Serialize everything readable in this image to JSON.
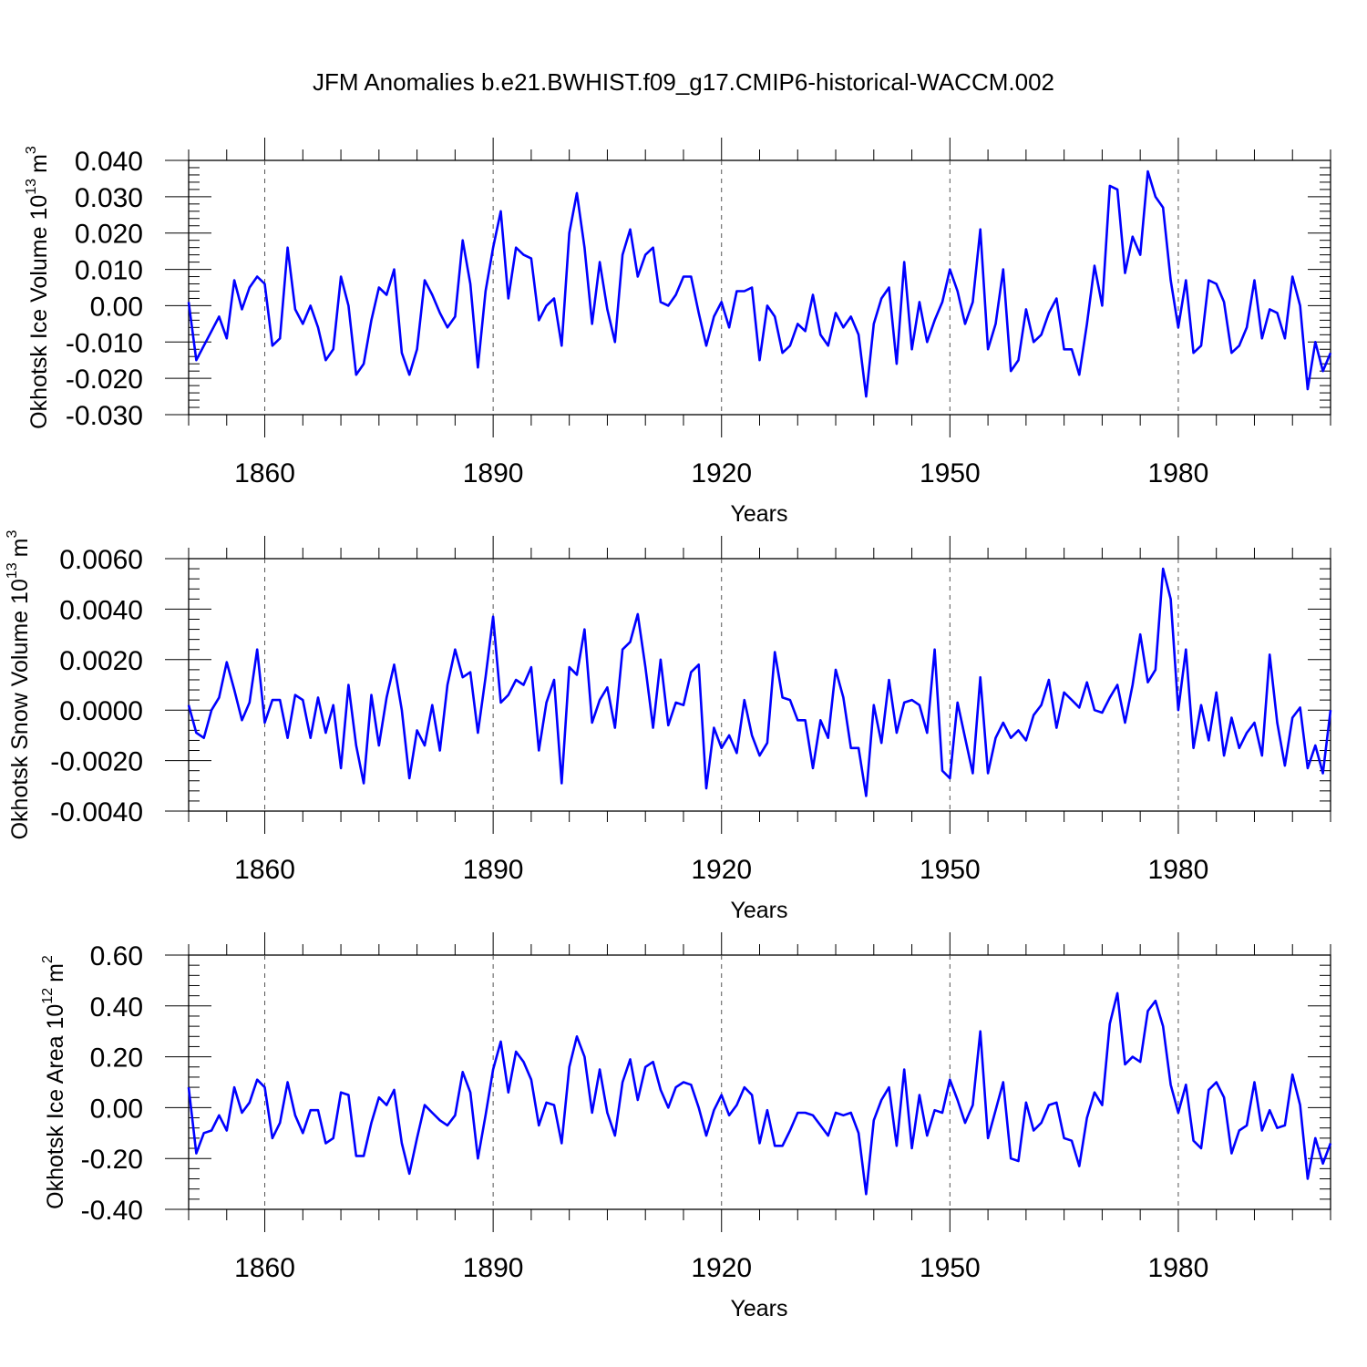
{
  "title": "JFM Anomalies b.e21.BWHIST.f09_g17.CMIP6-historical-WACCM.002",
  "line_color": "#0000ff",
  "chart_data": [
    {
      "type": "line",
      "ylabel_main": "Okhotsk Ice Volume 10",
      "ylabel_exp": "13",
      "ylabel_unit": "m",
      "ylabel_unit_exp": "3",
      "xlabel": "Years",
      "xlim": [
        1850,
        2000
      ],
      "ylim": [
        -0.03,
        0.04
      ],
      "x_ticks": [
        1860,
        1890,
        1920,
        1950,
        1980
      ],
      "x_tick_labels": [
        "1860",
        "1890",
        "1920",
        "1950",
        "1980"
      ],
      "y_ticks": [
        -0.03,
        -0.02,
        -0.01,
        0.0,
        0.01,
        0.02,
        0.03,
        0.04
      ],
      "y_tick_labels": [
        "-0.030",
        "-0.020",
        "-0.010",
        "0.00",
        "0.010",
        "0.020",
        "0.030",
        "0.040"
      ],
      "series": [
        {
          "name": "Okhotsk Ice Volume",
          "x_start": 1850,
          "values": [
            0.001,
            -0.015,
            -0.011,
            -0.007,
            -0.003,
            -0.009,
            0.007,
            -0.001,
            0.005,
            0.008,
            0.006,
            -0.011,
            -0.009,
            0.016,
            -0.001,
            -0.005,
            0.0,
            -0.006,
            -0.015,
            -0.012,
            0.008,
            0.0,
            -0.019,
            -0.016,
            -0.004,
            0.005,
            0.003,
            0.01,
            -0.013,
            -0.019,
            -0.012,
            0.007,
            0.003,
            -0.002,
            -0.006,
            -0.003,
            0.018,
            0.006,
            -0.017,
            0.004,
            0.016,
            0.026,
            0.002,
            0.016,
            0.014,
            0.013,
            -0.004,
            0.0,
            0.002,
            -0.011,
            0.02,
            0.031,
            0.016,
            -0.005,
            0.012,
            -0.001,
            -0.01,
            0.014,
            0.021,
            0.008,
            0.014,
            0.016,
            0.001,
            0.0,
            0.003,
            0.008,
            0.008,
            -0.002,
            -0.011,
            -0.003,
            0.001,
            -0.006,
            0.004,
            0.004,
            0.005,
            -0.015,
            0.0,
            -0.003,
            -0.013,
            -0.011,
            -0.005,
            -0.007,
            0.003,
            -0.008,
            -0.011,
            -0.002,
            -0.006,
            -0.003,
            -0.008,
            -0.025,
            -0.005,
            0.002,
            0.005,
            -0.016,
            0.012,
            -0.012,
            0.001,
            -0.01,
            -0.004,
            0.001,
            0.01,
            0.004,
            -0.005,
            0.001,
            0.021,
            -0.012,
            -0.005,
            0.01,
            -0.018,
            -0.015,
            -0.001,
            -0.01,
            -0.008,
            -0.002,
            0.002,
            -0.012,
            -0.012,
            -0.019,
            -0.005,
            0.011,
            0.0,
            0.033,
            0.032,
            0.009,
            0.019,
            0.014,
            0.037,
            0.03,
            0.027,
            0.007,
            -0.006,
            0.007,
            -0.013,
            -0.011,
            0.007,
            0.006,
            0.001,
            -0.013,
            -0.011,
            -0.006,
            0.007,
            -0.009,
            -0.001,
            -0.002,
            -0.009,
            0.008,
            0.0,
            -0.023,
            -0.01,
            -0.018,
            -0.013
          ]
        }
      ]
    },
    {
      "type": "line",
      "ylabel_main": "Okhotsk Snow Volume 10",
      "ylabel_exp": "13",
      "ylabel_unit": "m",
      "ylabel_unit_exp": "3",
      "xlabel": "Years",
      "xlim": [
        1850,
        2000
      ],
      "ylim": [
        -0.004,
        0.006
      ],
      "x_ticks": [
        1860,
        1890,
        1920,
        1950,
        1980
      ],
      "x_tick_labels": [
        "1860",
        "1890",
        "1920",
        "1950",
        "1980"
      ],
      "y_ticks": [
        -0.004,
        -0.002,
        0.0,
        0.002,
        0.004,
        0.006
      ],
      "y_tick_labels": [
        "-0.0040",
        "-0.0020",
        "0.0000",
        "0.0020",
        "0.0040",
        "0.0060"
      ],
      "series": [
        {
          "name": "Okhotsk Snow Volume",
          "x_start": 1850,
          "values": [
            0.0002,
            -0.0009,
            -0.0011,
            0.0,
            0.0005,
            0.0019,
            0.0008,
            -0.0004,
            0.0003,
            0.0024,
            -0.0005,
            0.0004,
            0.0004,
            -0.0011,
            0.0006,
            0.0004,
            -0.0011,
            0.0005,
            -0.0009,
            0.0002,
            -0.0023,
            0.001,
            -0.0014,
            -0.0029,
            0.0006,
            -0.0014,
            0.0005,
            0.0018,
            0.0,
            -0.0027,
            -0.0008,
            -0.0014,
            0.0002,
            -0.0016,
            0.001,
            0.0024,
            0.0013,
            0.0015,
            -0.0009,
            0.0013,
            0.0037,
            0.0003,
            0.0006,
            0.0012,
            0.001,
            0.0017,
            -0.0016,
            0.0003,
            0.0012,
            -0.0029,
            0.0017,
            0.0014,
            0.0032,
            -0.0005,
            0.0004,
            0.0009,
            -0.0007,
            0.0024,
            0.0027,
            0.0038,
            0.0017,
            -0.0007,
            0.002,
            -0.0006,
            0.0003,
            0.0002,
            0.0015,
            0.0018,
            -0.0031,
            -0.0007,
            -0.0015,
            -0.001,
            -0.0017,
            0.0004,
            -0.001,
            -0.0018,
            -0.0013,
            0.0023,
            0.0005,
            0.0004,
            -0.0004,
            -0.0004,
            -0.0023,
            -0.0004,
            -0.0011,
            0.0016,
            0.0005,
            -0.0015,
            -0.0015,
            -0.0034,
            0.0002,
            -0.0013,
            0.0012,
            -0.0009,
            0.0003,
            0.0004,
            0.0002,
            -0.0009,
            0.0024,
            -0.0024,
            -0.0027,
            0.0003,
            -0.0011,
            -0.0025,
            0.0013,
            -0.0025,
            -0.0011,
            -0.0005,
            -0.0011,
            -0.0008,
            -0.0012,
            -0.0002,
            0.0002,
            0.0012,
            -0.0007,
            0.0007,
            0.0004,
            0.0001,
            0.0011,
            0.0,
            -0.0001,
            0.0005,
            0.001,
            -0.0005,
            0.001,
            0.003,
            0.0011,
            0.0016,
            0.0056,
            0.0044,
            0.0,
            0.0024,
            -0.0015,
            0.0002,
            -0.0012,
            0.0007,
            -0.0018,
            -0.0003,
            -0.0015,
            -0.0009,
            -0.0005,
            -0.0018,
            0.0022,
            -0.0005,
            -0.0022,
            -0.0003,
            0.0001,
            -0.0023,
            -0.0014,
            -0.0025,
            0.0
          ]
        }
      ]
    },
    {
      "type": "line",
      "ylabel_main": "Okhotsk Ice Area 10",
      "ylabel_exp": "12",
      "ylabel_unit": "m",
      "ylabel_unit_exp": "2",
      "xlabel": "Years",
      "xlim": [
        1850,
        2000
      ],
      "ylim": [
        -0.4,
        0.6
      ],
      "x_ticks": [
        1860,
        1890,
        1920,
        1950,
        1980
      ],
      "x_tick_labels": [
        "1860",
        "1890",
        "1920",
        "1950",
        "1980"
      ],
      "y_ticks": [
        -0.4,
        -0.2,
        0.0,
        0.2,
        0.4,
        0.6
      ],
      "y_tick_labels": [
        "-0.40",
        "-0.20",
        "0.00",
        "0.20",
        "0.40",
        "0.60"
      ],
      "series": [
        {
          "name": "Okhotsk Ice Area",
          "x_start": 1850,
          "values": [
            0.08,
            -0.18,
            -0.1,
            -0.09,
            -0.03,
            -0.09,
            0.08,
            -0.02,
            0.02,
            0.11,
            0.08,
            -0.12,
            -0.06,
            0.1,
            -0.03,
            -0.1,
            -0.01,
            -0.01,
            -0.14,
            -0.12,
            0.06,
            0.05,
            -0.19,
            -0.19,
            -0.06,
            0.04,
            0.01,
            0.07,
            -0.14,
            -0.26,
            -0.12,
            0.01,
            -0.02,
            -0.05,
            -0.07,
            -0.03,
            0.14,
            0.06,
            -0.2,
            -0.03,
            0.15,
            0.26,
            0.06,
            0.22,
            0.18,
            0.11,
            -0.07,
            0.02,
            0.01,
            -0.14,
            0.16,
            0.28,
            0.2,
            -0.02,
            0.15,
            -0.02,
            -0.11,
            0.1,
            0.19,
            0.03,
            0.16,
            0.18,
            0.07,
            0.0,
            0.08,
            0.1,
            0.09,
            0.0,
            -0.11,
            -0.01,
            0.05,
            -0.03,
            0.01,
            0.08,
            0.05,
            -0.14,
            -0.01,
            -0.15,
            -0.15,
            -0.09,
            -0.02,
            -0.02,
            -0.03,
            -0.07,
            -0.11,
            -0.02,
            -0.03,
            -0.02,
            -0.1,
            -0.34,
            -0.05,
            0.03,
            0.08,
            -0.15,
            0.15,
            -0.16,
            0.05,
            -0.11,
            -0.01,
            -0.02,
            0.11,
            0.03,
            -0.06,
            0.01,
            0.3,
            -0.12,
            -0.01,
            0.1,
            -0.2,
            -0.21,
            0.02,
            -0.09,
            -0.06,
            0.01,
            0.02,
            -0.12,
            -0.13,
            -0.23,
            -0.04,
            0.06,
            0.01,
            0.33,
            0.45,
            0.17,
            0.2,
            0.18,
            0.38,
            0.42,
            0.32,
            0.09,
            -0.02,
            0.09,
            -0.13,
            -0.16,
            0.07,
            0.1,
            0.04,
            -0.18,
            -0.09,
            -0.07,
            0.1,
            -0.09,
            -0.01,
            -0.08,
            -0.07,
            0.13,
            0.01,
            -0.28,
            -0.12,
            -0.22,
            -0.14
          ]
        }
      ]
    }
  ]
}
